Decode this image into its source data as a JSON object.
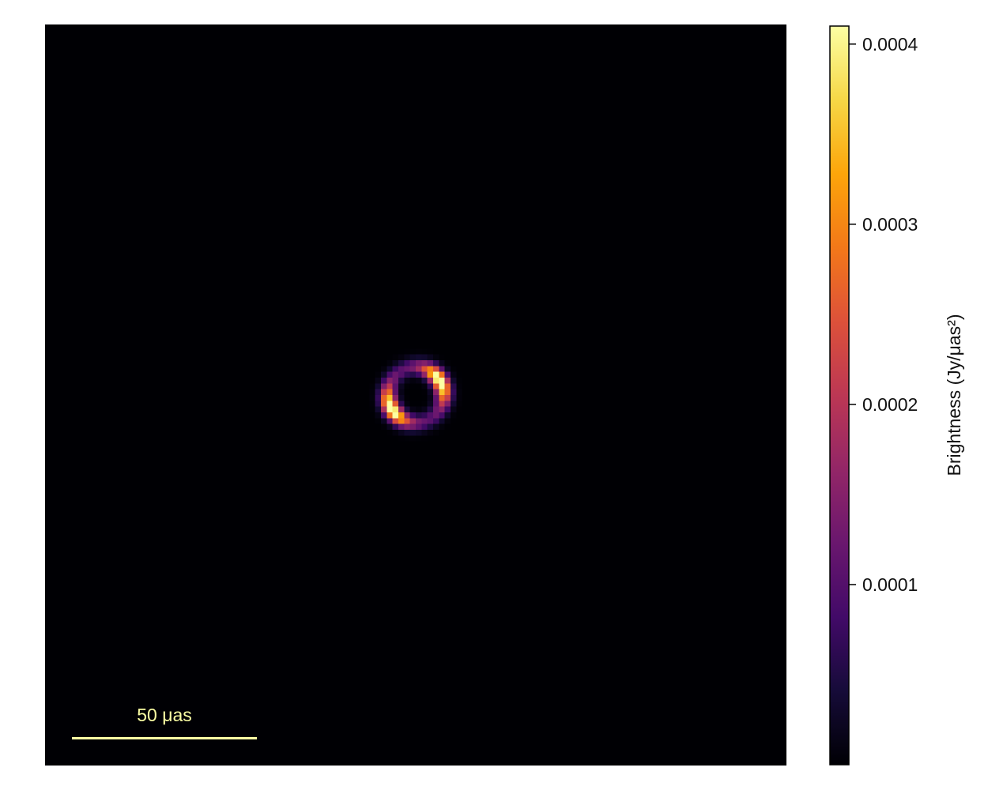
{
  "chart_data": {
    "type": "heatmap",
    "colormap": "inferno",
    "background_color": "#000004",
    "image": {
      "description_of_source": "black hole ring image",
      "ring_center": [
        0,
        0
      ],
      "ring_radius_uas": 7.5,
      "ring_width_uas": 3.5,
      "bright_arcs": [
        {
          "position_angle_deg": 60
        },
        {
          "position_angle_deg": 240
        }
      ]
    },
    "scale_bar": {
      "label": "50 μas",
      "length_uas": 50,
      "color": "#fcffa4"
    },
    "colorbar": {
      "label": "Brightness (Jy/μas²)",
      "ticks": [
        {
          "value": 0.0001,
          "label": "0.0001"
        },
        {
          "value": 0.0002,
          "label": "0.0002"
        },
        {
          "value": 0.0003,
          "label": "0.0003"
        },
        {
          "value": 0.0004,
          "label": "0.0004"
        }
      ],
      "range": [
        0.0,
        0.00041
      ]
    }
  }
}
